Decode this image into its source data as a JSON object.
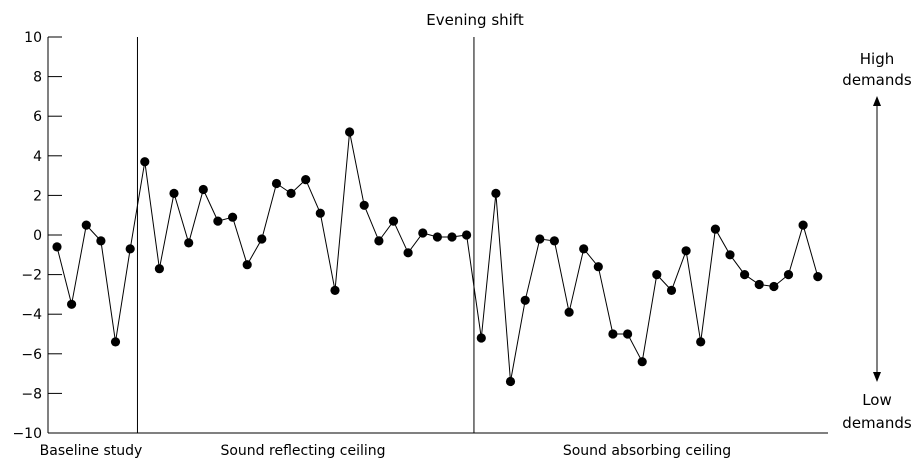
{
  "chart_data": {
    "type": "line",
    "title": "Evening shift",
    "ylim": [
      -10,
      10
    ],
    "yticks": [
      "10",
      "8",
      "6",
      "4",
      "2",
      "0",
      "−2",
      "−4",
      "−6",
      "−8",
      "−10"
    ],
    "ytick_values": [
      10,
      8,
      6,
      4,
      2,
      0,
      -2,
      -4,
      -6,
      -8,
      -10
    ],
    "grid": false,
    "phases": [
      {
        "label": "Baseline study",
        "points": 6
      },
      {
        "label": "Sound reflecting ceiling",
        "points": 23
      },
      {
        "label": "Sound absorbing ceiling",
        "points": 24
      }
    ],
    "values": [
      -0.6,
      -3.5,
      0.5,
      -0.3,
      -5.4,
      -0.7,
      3.7,
      -1.7,
      2.1,
      -0.4,
      2.3,
      0.7,
      0.9,
      -1.5,
      -0.2,
      2.6,
      2.1,
      2.8,
      1.1,
      -2.8,
      5.2,
      1.5,
      -0.3,
      0.7,
      -0.9,
      0.1,
      -0.1,
      -0.1,
      0.0,
      -5.2,
      2.1,
      -7.4,
      -3.3,
      -0.2,
      -0.3,
      -3.9,
      -0.7,
      -1.6,
      -5.0,
      -5.0,
      -6.4,
      -2.0,
      -2.8,
      -0.8,
      -5.4,
      0.3,
      -1.0,
      -2.0,
      -2.5,
      -2.6,
      -2.0,
      0.5,
      -2.1
    ],
    "annotations": {
      "high": [
        "High",
        "demands"
      ],
      "low": [
        "Low",
        "demands"
      ]
    }
  }
}
